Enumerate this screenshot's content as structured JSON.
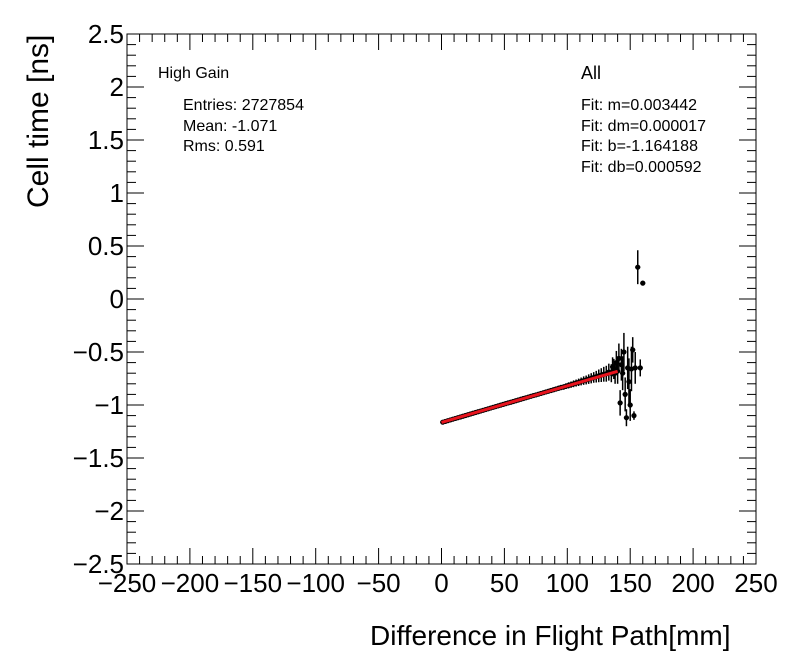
{
  "chart_data": {
    "type": "scatter",
    "title": "",
    "xlabel": "Difference in Flight Path[mm]",
    "ylabel": "Cell time [ns]",
    "xlim": [
      -250,
      250
    ],
    "ylim": [
      -2.5,
      2.5
    ],
    "x_ticks": [
      -250,
      -200,
      -150,
      -100,
      -50,
      0,
      50,
      100,
      150,
      200,
      250
    ],
    "y_ticks": [
      -2.5,
      -2,
      -1.5,
      -1,
      -0.5,
      0,
      0.5,
      1,
      1.5,
      2,
      2.5
    ],
    "x_tick_labels": [
      "−250",
      "−200",
      "−150",
      "−100",
      "−50",
      "0",
      "50",
      "100",
      "150",
      "200",
      "250"
    ],
    "y_tick_labels": [
      "−2.5",
      "−2",
      "−1.5",
      "−1",
      "−0.5",
      "0",
      "0.5",
      "1",
      "1.5",
      "2",
      "2.5"
    ],
    "legend": {
      "gain": "High Gain",
      "entries": "Entries: 2727854",
      "mean": "Mean: -1.071",
      "rms": "Rms: 0.591",
      "selection": "All",
      "fit_m": "Fit: m=0.003442",
      "fit_dm": "Fit: dm=0.000017",
      "fit_b": "Fit: b=-1.164188",
      "fit_db": "Fit: db=0.000592"
    },
    "fit_line": {
      "m": 0.003442,
      "b": -1.164188,
      "x_range": [
        0,
        140
      ],
      "color": "#e8141e"
    },
    "marker_color": "#000000",
    "series": [
      {
        "points": [
          [
            1,
            -1.162,
            0.004
          ],
          [
            3,
            -1.155,
            0.004
          ],
          [
            5,
            -1.148,
            0.004
          ],
          [
            7,
            -1.141,
            0.004
          ],
          [
            9,
            -1.134,
            0.004
          ],
          [
            11,
            -1.127,
            0.005
          ],
          [
            13,
            -1.12,
            0.005
          ],
          [
            15,
            -1.113,
            0.005
          ],
          [
            17,
            -1.106,
            0.005
          ],
          [
            19,
            -1.099,
            0.005
          ],
          [
            21,
            -1.092,
            0.005
          ],
          [
            23,
            -1.085,
            0.006
          ],
          [
            25,
            -1.078,
            0.006
          ],
          [
            27,
            -1.071,
            0.006
          ],
          [
            29,
            -1.064,
            0.006
          ],
          [
            31,
            -1.057,
            0.006
          ],
          [
            33,
            -1.05,
            0.007
          ],
          [
            35,
            -1.043,
            0.007
          ],
          [
            37,
            -1.036,
            0.007
          ],
          [
            39,
            -1.029,
            0.008
          ],
          [
            41,
            -1.022,
            0.008
          ],
          [
            43,
            -1.015,
            0.008
          ],
          [
            45,
            -1.008,
            0.009
          ],
          [
            47,
            -1.001,
            0.009
          ],
          [
            49,
            -0.994,
            0.009
          ],
          [
            51,
            -0.987,
            0.01
          ],
          [
            53,
            -0.98,
            0.01
          ],
          [
            55,
            -0.974,
            0.011
          ],
          [
            57,
            -0.967,
            0.011
          ],
          [
            59,
            -0.96,
            0.012
          ],
          [
            61,
            -0.953,
            0.012
          ],
          [
            63,
            -0.946,
            0.013
          ],
          [
            65,
            -0.939,
            0.013
          ],
          [
            67,
            -0.932,
            0.014
          ],
          [
            69,
            -0.925,
            0.014
          ],
          [
            71,
            -0.918,
            0.015
          ],
          [
            73,
            -0.911,
            0.015
          ],
          [
            75,
            -0.905,
            0.016
          ],
          [
            77,
            -0.898,
            0.017
          ],
          [
            79,
            -0.891,
            0.017
          ],
          [
            81,
            -0.884,
            0.018
          ],
          [
            83,
            -0.877,
            0.019
          ],
          [
            85,
            -0.87,
            0.02
          ],
          [
            87,
            -0.863,
            0.021
          ],
          [
            89,
            -0.856,
            0.022
          ],
          [
            91,
            -0.849,
            0.023
          ],
          [
            93,
            -0.842,
            0.024
          ],
          [
            95,
            -0.835,
            0.025
          ],
          [
            97,
            -0.83,
            0.026
          ],
          [
            99,
            -0.822,
            0.027
          ],
          [
            101,
            -0.815,
            0.029
          ],
          [
            103,
            -0.808,
            0.03
          ],
          [
            105,
            -0.8,
            0.032
          ],
          [
            107,
            -0.793,
            0.033
          ],
          [
            109,
            -0.786,
            0.035
          ],
          [
            111,
            -0.778,
            0.037
          ],
          [
            113,
            -0.77,
            0.04
          ],
          [
            115,
            -0.764,
            0.042
          ],
          [
            117,
            -0.756,
            0.045
          ],
          [
            119,
            -0.748,
            0.048
          ],
          [
            121,
            -0.74,
            0.05
          ],
          [
            123,
            -0.733,
            0.055
          ],
          [
            125,
            -0.725,
            0.06
          ],
          [
            127,
            -0.718,
            0.065
          ],
          [
            129,
            -0.71,
            0.07
          ],
          [
            131,
            -0.705,
            0.075
          ],
          [
            133,
            -0.69,
            0.08
          ],
          [
            135,
            -0.7,
            0.085
          ],
          [
            136,
            -0.64,
            0.09
          ],
          [
            137,
            -0.66,
            0.095
          ],
          [
            138,
            -0.7,
            0.1
          ],
          [
            139,
            -0.6,
            0.11
          ],
          [
            140,
            -0.68,
            0.12
          ],
          [
            141,
            -0.56,
            0.14
          ],
          [
            142,
            -0.98,
            0.12
          ],
          [
            143,
            -0.62,
            0.15
          ],
          [
            144,
            -0.7,
            0.16
          ],
          [
            145,
            -0.5,
            0.18
          ],
          [
            146,
            -0.9,
            0.16
          ],
          [
            147,
            -1.12,
            0.08
          ],
          [
            148,
            -0.65,
            0.2
          ],
          [
            149,
            -0.78,
            0.22
          ],
          [
            150,
            -1.0,
            0.15
          ],
          [
            151,
            -0.66,
            0.21
          ],
          [
            152,
            -0.48,
            0.12
          ],
          [
            153,
            -1.1,
            0.04
          ],
          [
            154,
            -0.65,
            0.15
          ],
          [
            156,
            0.3,
            0.16
          ],
          [
            158,
            -0.65,
            0.08
          ],
          [
            160,
            0.15,
            0.01
          ]
        ]
      }
    ]
  }
}
